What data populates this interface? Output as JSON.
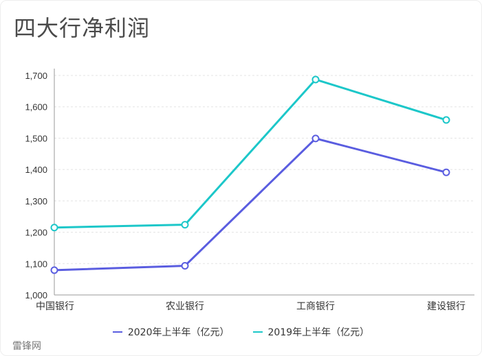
{
  "title": "四大行净利润",
  "footer": "雷锋网",
  "colors": {
    "series_2020": "#5a5de0",
    "series_2019": "#1cc7c9",
    "grid": "#e3e3e3",
    "axis": "#999999"
  },
  "chart_data": {
    "type": "line",
    "title": "四大行净利润",
    "xlabel": "",
    "ylabel": "",
    "categories": [
      "中国银行",
      "农业银行",
      "工商银行",
      "建设银行"
    ],
    "series": [
      {
        "name": "2020年上半年（亿元）",
        "values": [
          1079,
          1093,
          1499,
          1391
        ]
      },
      {
        "name": "2019年上半年（亿元）",
        "values": [
          1215,
          1224,
          1687,
          1558
        ]
      }
    ],
    "ylim": [
      1000,
      1700
    ],
    "yticks": [
      "1,000",
      "1,100",
      "1,200",
      "1,300",
      "1,400",
      "1,500",
      "1,600",
      "1,700"
    ],
    "grid": true,
    "legend_position": "bottom"
  }
}
